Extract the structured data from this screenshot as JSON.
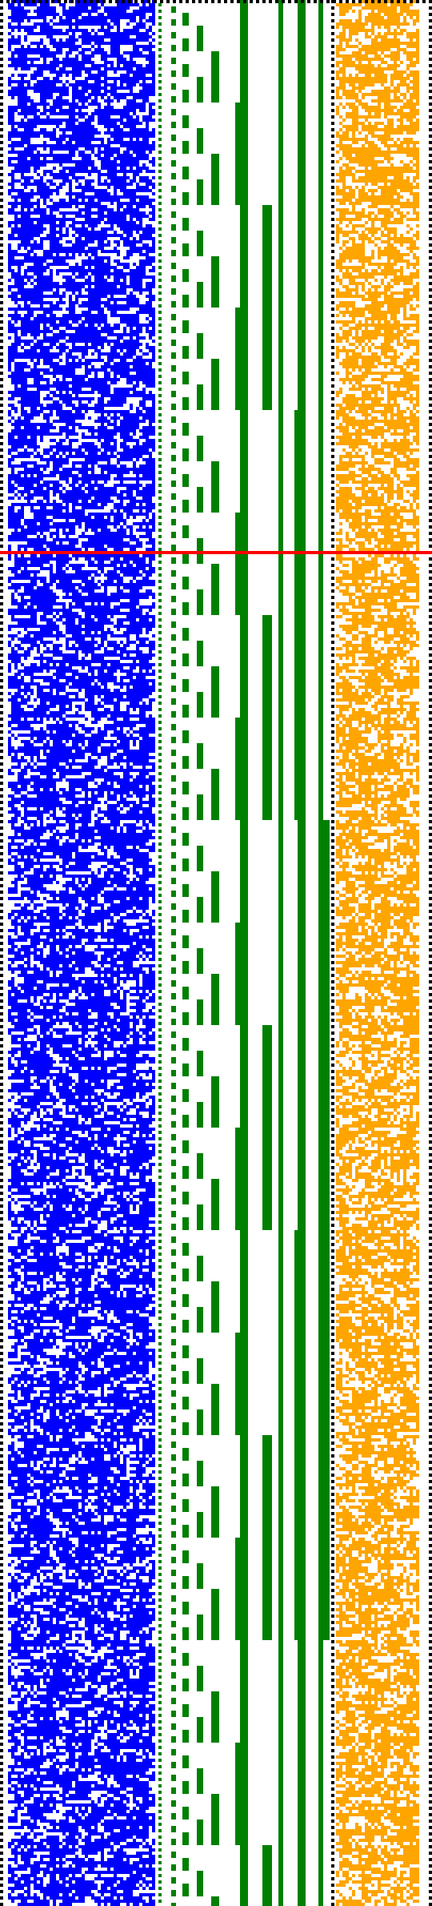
{
  "canvas": {
    "background": "#ffffff"
  },
  "colors": {
    "left_band": "#0000ff",
    "counter_band": "#008000",
    "right_band": "#ffa500",
    "marker_line": "#ff0000",
    "border_dots": "#000000"
  },
  "grid": {
    "cols_left": 46,
    "cols_right": 26,
    "rows": 595,
    "fill_ratio_left": 0.55,
    "fill_ratio_right": 0.5
  },
  "counter": {
    "bit_columns": 9,
    "bit_periods": [
      2,
      4,
      8,
      16,
      32,
      64,
      128,
      256,
      512
    ]
  },
  "marker": {
    "row_fraction": 0.29
  },
  "icons": {
    "border": "dotted-border",
    "marker": "horizontal-marker-line"
  }
}
